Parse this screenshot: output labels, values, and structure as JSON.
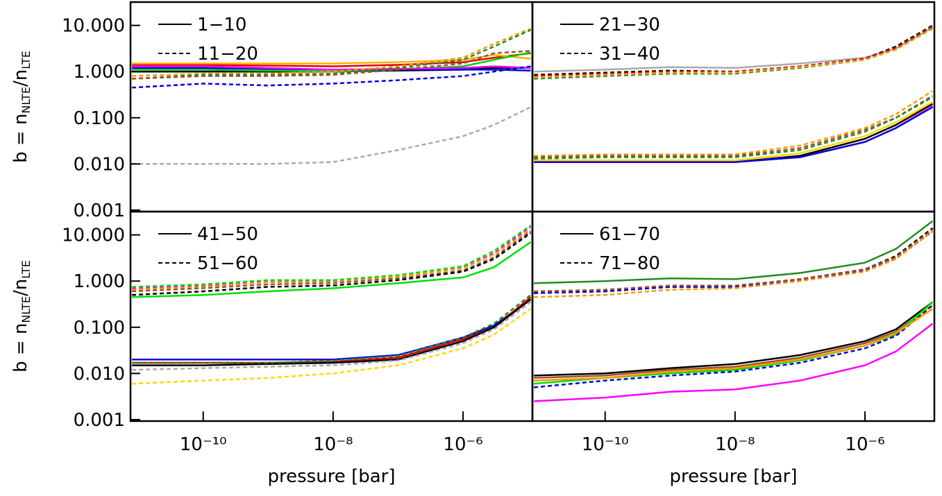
{
  "chart_data": [
    {
      "type": "line",
      "xlim": [
        7.6e-12,
        1.17e-05
      ],
      "ylim": [
        0.00093,
        32
      ],
      "xlog": true,
      "ylog": true,
      "ylabel": [
        "b = n",
        "NLTE",
        "/n",
        "LTE"
      ],
      "yticks": [
        {
          "value": 10,
          "label": "10.000"
        },
        {
          "value": 1,
          "label": "1.000"
        },
        {
          "value": 0.1,
          "label": "0.100"
        },
        {
          "value": 0.01,
          "label": "0.010"
        },
        {
          "value": 0.001,
          "label": "0.001"
        }
      ],
      "legend": [
        {
          "label": "1−10",
          "dash": "solid"
        },
        {
          "label": "11−20",
          "dash": "dashed"
        }
      ],
      "x": [
        8e-12,
        1e-10,
        1e-09,
        1e-08,
        1e-07,
        1e-06,
        3e-06,
        1.1e-05
      ],
      "series": [
        {
          "color": "#000000",
          "dash": "solid",
          "values": [
            1.0,
            1.0,
            1.0,
            1.0,
            1.05,
            1.1,
            1.2,
            1.2
          ]
        },
        {
          "color": "#e00000",
          "dash": "solid",
          "values": [
            1.4,
            1.4,
            1.35,
            1.3,
            1.4,
            1.6,
            2.0,
            2.5
          ]
        },
        {
          "color": "#ffb000",
          "dash": "solid",
          "values": [
            1.5,
            1.5,
            1.5,
            1.5,
            1.6,
            1.8,
            2.3,
            1.9
          ]
        },
        {
          "color": "#00d000",
          "dash": "solid",
          "values": [
            1.1,
            1.1,
            1.05,
            1.0,
            1.1,
            1.3,
            1.8,
            2.6
          ]
        },
        {
          "color": "#0000e0",
          "dash": "solid",
          "values": [
            1.2,
            1.2,
            1.15,
            1.1,
            1.1,
            1.1,
            1.1,
            1.05
          ]
        },
        {
          "color": "#ff00ff",
          "dash": "solid",
          "values": [
            1.3,
            1.3,
            1.2,
            1.1,
            1.15,
            1.2,
            1.3,
            1.2
          ]
        },
        {
          "color": "#ff9900",
          "dash": "dashed",
          "values": [
            0.8,
            0.9,
            0.9,
            1.0,
            1.3,
            2.0,
            4,
            8.5
          ]
        },
        {
          "color": "#228b22",
          "dash": "dashed",
          "values": [
            0.7,
            0.85,
            0.85,
            0.9,
            1.2,
            1.8,
            3.5,
            8
          ]
        },
        {
          "color": "#a0522d",
          "dash": "dashed",
          "values": [
            0.7,
            0.8,
            0.8,
            0.85,
            1.1,
            1.5,
            2.5,
            2.8
          ]
        },
        {
          "color": "#0000e0",
          "dash": "dashed",
          "values": [
            0.45,
            0.55,
            0.5,
            0.55,
            0.65,
            0.8,
            1.0,
            1.3
          ]
        },
        {
          "color": "#aaaaaa",
          "dash": "dashed",
          "values": [
            0.01,
            0.01,
            0.01,
            0.011,
            0.02,
            0.04,
            0.07,
            0.17
          ]
        }
      ]
    },
    {
      "type": "line",
      "xlim": [
        7.6e-12,
        1.17e-05
      ],
      "ylim": [
        0.00093,
        32
      ],
      "xlog": true,
      "ylog": true,
      "legend": [
        {
          "label": "21−30",
          "dash": "solid"
        },
        {
          "label": "31−40",
          "dash": "dashed"
        }
      ],
      "x": [
        8e-12,
        1e-10,
        1e-09,
        1e-08,
        1e-07,
        1e-06,
        3e-06,
        1.1e-05
      ],
      "series": [
        {
          "color": "#aaaaaa",
          "dash": "solid",
          "values": [
            1.0,
            1.1,
            1.25,
            1.2,
            1.5,
            2.0,
            3.2,
            9
          ]
        },
        {
          "color": "#000000",
          "dash": "dashed",
          "values": [
            0.85,
            0.95,
            1.05,
            1.0,
            1.3,
            1.9,
            3.5,
            10
          ]
        },
        {
          "color": "#e00000",
          "dash": "dashed",
          "values": [
            0.8,
            0.9,
            1.0,
            1.0,
            1.3,
            1.9,
            3.3,
            9.5
          ]
        },
        {
          "color": "#228b22",
          "dash": "dashed",
          "values": [
            0.7,
            0.8,
            0.9,
            0.9,
            1.2,
            1.8,
            3,
            9
          ]
        },
        {
          "color": "#ff9900",
          "dash": "dashed",
          "values": [
            0.75,
            0.85,
            0.95,
            0.95,
            1.25,
            1.8,
            3,
            8.5
          ]
        },
        {
          "color": "#000000",
          "dash": "solid",
          "values": [
            0.011,
            0.011,
            0.011,
            0.011,
            0.015,
            0.035,
            0.07,
            0.2
          ]
        },
        {
          "color": "#ff00ff",
          "dash": "solid",
          "values": [
            0.011,
            0.011,
            0.011,
            0.011,
            0.014,
            0.03,
            0.06,
            0.18
          ]
        },
        {
          "color": "#0000e0",
          "dash": "solid",
          "values": [
            0.011,
            0.011,
            0.011,
            0.011,
            0.014,
            0.03,
            0.06,
            0.17
          ]
        },
        {
          "color": "#ffd700",
          "dash": "solid",
          "values": [
            0.012,
            0.012,
            0.012,
            0.012,
            0.017,
            0.04,
            0.08,
            0.22
          ]
        },
        {
          "color": "#ff9900",
          "dash": "dashed",
          "values": [
            0.015,
            0.016,
            0.016,
            0.016,
            0.025,
            0.06,
            0.12,
            0.38
          ]
        },
        {
          "color": "#a0522d",
          "dash": "dashed",
          "values": [
            0.014,
            0.015,
            0.015,
            0.015,
            0.022,
            0.055,
            0.1,
            0.3
          ]
        },
        {
          "color": "#228b22",
          "dash": "dashed",
          "values": [
            0.013,
            0.014,
            0.014,
            0.014,
            0.02,
            0.05,
            0.1,
            0.28
          ]
        }
      ]
    },
    {
      "type": "line",
      "xlim": [
        7.6e-12,
        1.17e-05
      ],
      "ylim": [
        0.00093,
        32
      ],
      "xlog": true,
      "ylog": true,
      "ylabel": [
        "b = n",
        "NLTE",
        "/n",
        "LTE"
      ],
      "xlabel": "pressure [bar]",
      "yticks": [
        {
          "value": 10,
          "label": "10.000"
        },
        {
          "value": 1,
          "label": "1.000"
        },
        {
          "value": 0.1,
          "label": "0.100"
        },
        {
          "value": 0.01,
          "label": "0.010"
        },
        {
          "value": 0.001,
          "label": "0.001"
        }
      ],
      "xticks": [
        {
          "value": 1e-10,
          "label": "10⁻¹⁰"
        },
        {
          "value": 1e-08,
          "label": "10⁻⁸"
        },
        {
          "value": 1e-06,
          "label": "10⁻⁶"
        }
      ],
      "legend": [
        {
          "label": "41−50",
          "dash": "solid"
        },
        {
          "label": "51−60",
          "dash": "dashed"
        }
      ],
      "x": [
        8e-12,
        1e-10,
        1e-09,
        1e-08,
        1e-07,
        1e-06,
        3e-06,
        1.1e-05
      ],
      "series": [
        {
          "color": "#00e000",
          "dash": "solid",
          "values": [
            0.45,
            0.5,
            0.6,
            0.7,
            0.9,
            1.2,
            2,
            7
          ]
        },
        {
          "color": "#ff00ff",
          "dash": "dashed",
          "values": [
            0.7,
            0.8,
            1.0,
            1.0,
            1.3,
            2.0,
            4,
            15
          ]
        },
        {
          "color": "#00e000",
          "dash": "dashed",
          "values": [
            0.75,
            0.85,
            1.05,
            1.05,
            1.35,
            2.1,
            4.5,
            16
          ]
        },
        {
          "color": "#ff9900",
          "dash": "dashed",
          "values": [
            0.65,
            0.75,
            0.95,
            0.95,
            1.25,
            1.9,
            3.8,
            13
          ]
        },
        {
          "color": "#a0522d",
          "dash": "dashed",
          "values": [
            0.6,
            0.7,
            0.85,
            0.9,
            1.15,
            1.7,
            3.3,
            12
          ]
        },
        {
          "color": "#000000",
          "dash": "dashed",
          "values": [
            0.5,
            0.6,
            0.75,
            0.8,
            1.05,
            1.6,
            3,
            11
          ]
        },
        {
          "color": "#0000e0",
          "dash": "solid",
          "values": [
            0.02,
            0.02,
            0.02,
            0.02,
            0.025,
            0.06,
            0.11,
            0.4
          ]
        },
        {
          "color": "#e00000",
          "dash": "solid",
          "values": [
            0.017,
            0.017,
            0.017,
            0.018,
            0.022,
            0.055,
            0.1,
            0.45
          ]
        },
        {
          "color": "#000000",
          "dash": "solid",
          "values": [
            0.015,
            0.015,
            0.016,
            0.017,
            0.02,
            0.05,
            0.1,
            0.4
          ]
        },
        {
          "color": "#aaaaaa",
          "dash": "dashed",
          "values": [
            0.012,
            0.013,
            0.014,
            0.015,
            0.019,
            0.045,
            0.09,
            0.35
          ]
        },
        {
          "color": "#ffd700",
          "dash": "dashed",
          "values": [
            0.006,
            0.007,
            0.008,
            0.01,
            0.015,
            0.035,
            0.07,
            0.25
          ]
        },
        {
          "color": "#228b22",
          "dash": "dashed",
          "values": [
            0.017,
            0.017,
            0.017,
            0.019,
            0.024,
            0.06,
            0.12,
            0.5
          ]
        }
      ]
    },
    {
      "type": "line",
      "xlim": [
        7.6e-12,
        1.17e-05
      ],
      "ylim": [
        0.00093,
        32
      ],
      "xlog": true,
      "ylog": true,
      "xlabel": "pressure [bar]",
      "xticks": [
        {
          "value": 1e-10,
          "label": "10⁻¹⁰"
        },
        {
          "value": 1e-08,
          "label": "10⁻⁸"
        },
        {
          "value": 1e-06,
          "label": "10⁻⁶"
        }
      ],
      "legend": [
        {
          "label": "61−70",
          "dash": "solid"
        },
        {
          "label": "71−80",
          "dash": "dashed"
        }
      ],
      "x": [
        8e-12,
        1e-10,
        1e-09,
        1e-08,
        1e-07,
        1e-06,
        3e-06,
        1.1e-05
      ],
      "series": [
        {
          "color": "#228b22",
          "dash": "solid",
          "values": [
            0.9,
            1.0,
            1.15,
            1.1,
            1.5,
            2.5,
            5,
            20
          ]
        },
        {
          "color": "#000000",
          "dash": "dashed",
          "values": [
            0.55,
            0.6,
            0.75,
            0.75,
            1.1,
            1.8,
            3.5,
            14
          ]
        },
        {
          "color": "#0000e0",
          "dash": "dashed",
          "values": [
            0.55,
            0.6,
            0.75,
            0.75,
            1.05,
            1.7,
            3.2,
            12
          ]
        },
        {
          "color": "#a0522d",
          "dash": "dashed",
          "values": [
            0.6,
            0.65,
            0.8,
            0.8,
            1.1,
            1.8,
            3.3,
            13
          ]
        },
        {
          "color": "#ff9900",
          "dash": "dashed",
          "values": [
            0.45,
            0.5,
            0.65,
            0.7,
            1.0,
            1.6,
            3,
            12
          ]
        },
        {
          "color": "#000000",
          "dash": "solid",
          "values": [
            0.009,
            0.01,
            0.013,
            0.016,
            0.025,
            0.05,
            0.09,
            0.35
          ]
        },
        {
          "color": "#a0522d",
          "dash": "solid",
          "values": [
            0.008,
            0.009,
            0.012,
            0.014,
            0.022,
            0.045,
            0.08,
            0.3
          ]
        },
        {
          "color": "#ffd700",
          "dash": "solid",
          "values": [
            0.007,
            0.008,
            0.011,
            0.012,
            0.02,
            0.04,
            0.075,
            0.3
          ]
        },
        {
          "color": "#00e000",
          "dash": "solid",
          "values": [
            0.006,
            0.008,
            0.01,
            0.012,
            0.019,
            0.04,
            0.07,
            0.35
          ]
        },
        {
          "color": "#0000e0",
          "dash": "dashed",
          "values": [
            0.005,
            0.007,
            0.009,
            0.011,
            0.017,
            0.035,
            0.065,
            0.3
          ]
        },
        {
          "color": "#ff00ff",
          "dash": "solid",
          "values": [
            0.0025,
            0.003,
            0.004,
            0.0045,
            0.007,
            0.015,
            0.03,
            0.12
          ]
        },
        {
          "color": "#ff9900",
          "dash": "solid",
          "values": [
            0.007,
            0.008,
            0.011,
            0.013,
            0.02,
            0.04,
            0.075,
            0.25
          ]
        }
      ]
    }
  ]
}
